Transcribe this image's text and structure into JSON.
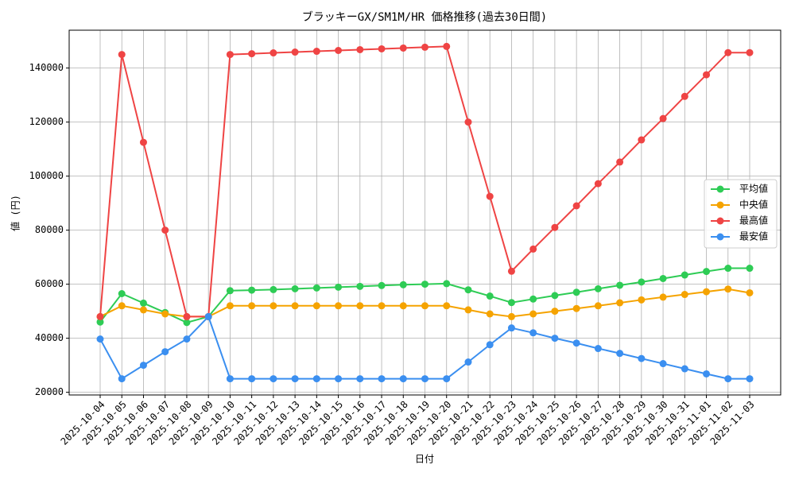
{
  "chart_data": {
    "type": "line",
    "title": "ブラッキーGX/SM1M/HR 価格推移(過去30日間)",
    "x_label": "日付",
    "y_label": "値 (円)",
    "categories": [
      "2025-10-04",
      "2025-10-05",
      "2025-10-06",
      "2025-10-07",
      "2025-10-08",
      "2025-10-09",
      "2025-10-10",
      "2025-10-11",
      "2025-10-12",
      "2025-10-13",
      "2025-10-14",
      "2025-10-15",
      "2025-10-16",
      "2025-10-17",
      "2025-10-18",
      "2025-10-19",
      "2025-10-20",
      "2025-10-21",
      "2025-10-22",
      "2025-10-23",
      "2025-10-24",
      "2025-10-25",
      "2025-10-26",
      "2025-10-27",
      "2025-10-28",
      "2025-10-29",
      "2025-10-30",
      "2025-10-31",
      "2025-11-01",
      "2025-11-02",
      "2025-11-03"
    ],
    "series": [
      {
        "name": "平均値",
        "color": "#2ecc55",
        "values": [
          46000,
          56500,
          53000,
          49500,
          45800,
          48000,
          57600,
          57800,
          58000,
          58300,
          58600,
          58900,
          59200,
          59500,
          59800,
          60000,
          60200,
          57900,
          55600,
          53200,
          54500,
          55800,
          57000,
          58300,
          59600,
          60800,
          62100,
          63400,
          64700,
          65900,
          65900
        ]
      },
      {
        "name": "中央値",
        "color": "#f5a300",
        "values": [
          48000,
          52000,
          50500,
          49000,
          48000,
          48000,
          52000,
          52000,
          52000,
          52000,
          52000,
          52000,
          52000,
          52000,
          52000,
          52000,
          52000,
          50500,
          49000,
          48000,
          49000,
          50000,
          51000,
          52000,
          53100,
          54200,
          55200,
          56200,
          57200,
          58200,
          56800
        ]
      },
      {
        "name": "最高値",
        "color": "#ef4444",
        "values": [
          48000,
          145000,
          112500,
          80000,
          48000,
          48000,
          145000,
          145300,
          145600,
          145900,
          146200,
          146500,
          146800,
          147100,
          147400,
          147700,
          148000,
          120000,
          92500,
          64800,
          73000,
          81000,
          89000,
          97200,
          105200,
          113400,
          121300,
          129500,
          137500,
          145700,
          145700
        ]
      },
      {
        "name": "最安値",
        "color": "#3b8ff0",
        "values": [
          39700,
          25000,
          30000,
          35000,
          39700,
          48000,
          25000,
          25000,
          25000,
          25000,
          25000,
          25000,
          25000,
          25000,
          25000,
          25000,
          25000,
          31200,
          37600,
          43800,
          42000,
          40000,
          38200,
          36200,
          34400,
          32500,
          30600,
          28700,
          26800,
          25000,
          25000
        ]
      }
    ],
    "ylim": [
      19000,
      154000
    ],
    "yticks": [
      20000,
      40000,
      60000,
      80000,
      100000,
      120000,
      140000
    ],
    "grid": true,
    "legend": "right"
  }
}
